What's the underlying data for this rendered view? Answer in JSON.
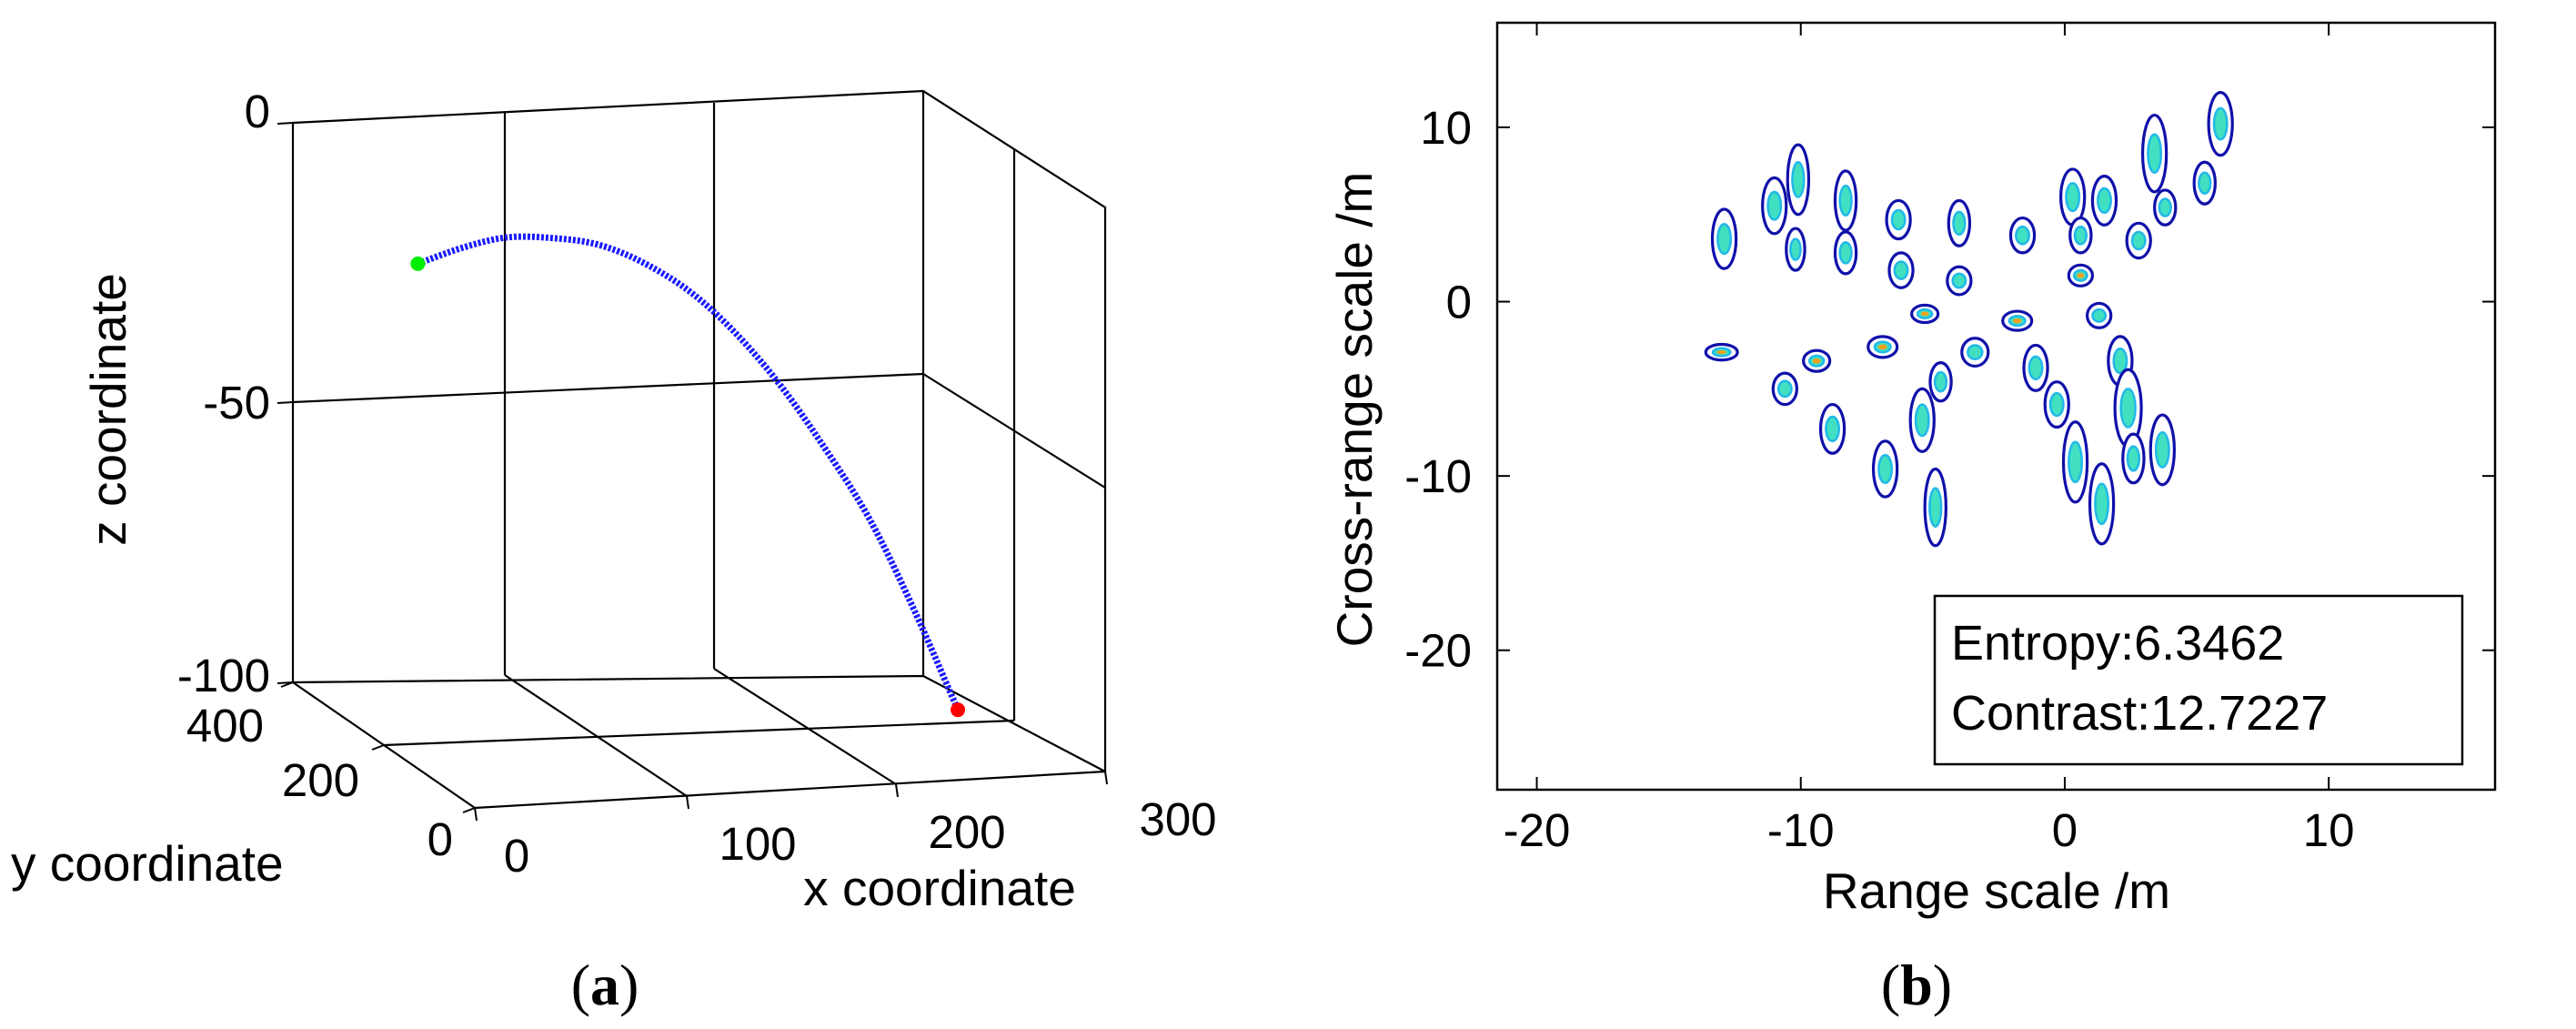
{
  "chart_data": [
    {
      "type": "line",
      "projection": "3d",
      "panel_label": "a",
      "xlabel": "x coordinate",
      "ylabel": "y coordinate",
      "zlabel": "z coordinate",
      "xlim": [
        0,
        300
      ],
      "ylim": [
        0,
        400
      ],
      "zlim": [
        -100,
        0
      ],
      "x_ticks": [
        "0",
        "100",
        "200",
        "300"
      ],
      "y_ticks": [
        "0",
        "200",
        "400"
      ],
      "z_ticks": [
        "0",
        "-50",
        "-100"
      ],
      "grid": true,
      "series": [
        {
          "name": "trajectory",
          "color": "#1a1aff",
          "points": [
            {
              "x": 40,
              "y": 310,
              "z": -21
            },
            {
              "x": 59,
              "y": 300,
              "z": -18
            },
            {
              "x": 78,
              "y": 290,
              "z": -16
            },
            {
              "x": 98,
              "y": 280,
              "z": -16
            },
            {
              "x": 117,
              "y": 270,
              "z": -17
            },
            {
              "x": 136,
              "y": 260,
              "z": -20
            },
            {
              "x": 156,
              "y": 250,
              "z": -25
            },
            {
              "x": 175,
              "y": 240,
              "z": -32
            },
            {
              "x": 194,
              "y": 230,
              "z": -41
            },
            {
              "x": 213,
              "y": 220,
              "z": -52
            },
            {
              "x": 233,
              "y": 210,
              "z": -65
            },
            {
              "x": 252,
              "y": 200,
              "z": -81
            },
            {
              "x": 271,
              "y": 190,
              "z": -99
            }
          ]
        }
      ],
      "markers": [
        {
          "name": "start",
          "color": "#00ee00",
          "x": 40,
          "y": 310,
          "z": -21
        },
        {
          "name": "end",
          "color": "#ff0000",
          "x": 271,
          "y": 190,
          "z": -99
        }
      ]
    },
    {
      "type": "contour",
      "panel_label": "b",
      "xlabel": "Range scale /m",
      "ylabel": "Cross-range scale /m",
      "xlim": [
        -21.5,
        16.3
      ],
      "ylim": [
        -28,
        16
      ],
      "x_ticks": [
        -20,
        -10,
        0,
        10
      ],
      "y_ticks": [
        -20,
        -10,
        0,
        10
      ],
      "legend": {
        "placement": "bottom-right",
        "lines": [
          "Entropy:6.3462",
          "Contrast:12.7227"
        ]
      },
      "colors": {
        "outer": "#1010aa",
        "mid": "#22b8e8",
        "core": "#40e0c0",
        "peak": "#f0a020"
      },
      "scatterers": [
        {
          "x": -12.9,
          "y": 3.6,
          "w": 0.45,
          "h": 1.7,
          "peak": false
        },
        {
          "x": -11.0,
          "y": 5.5,
          "w": 0.45,
          "h": 1.6,
          "peak": false
        },
        {
          "x": -10.1,
          "y": 7.0,
          "w": 0.4,
          "h": 2.0,
          "peak": false
        },
        {
          "x": -8.3,
          "y": 5.8,
          "w": 0.4,
          "h": 1.7,
          "peak": false
        },
        {
          "x": -8.3,
          "y": 2.8,
          "w": 0.4,
          "h": 1.2,
          "peak": false
        },
        {
          "x": -10.2,
          "y": 3.0,
          "w": 0.35,
          "h": 1.2,
          "peak": false
        },
        {
          "x": -6.3,
          "y": 4.7,
          "w": 0.45,
          "h": 1.1,
          "peak": false
        },
        {
          "x": -6.2,
          "y": 1.8,
          "w": 0.45,
          "h": 1.0,
          "peak": false
        },
        {
          "x": -4.0,
          "y": 4.5,
          "w": 0.4,
          "h": 1.3,
          "peak": false
        },
        {
          "x": -4.0,
          "y": 1.2,
          "w": 0.45,
          "h": 0.8,
          "peak": false
        },
        {
          "x": -1.6,
          "y": 3.8,
          "w": 0.45,
          "h": 1.0,
          "peak": false
        },
        {
          "x": 0.3,
          "y": 6.0,
          "w": 0.45,
          "h": 1.6,
          "peak": false
        },
        {
          "x": 1.5,
          "y": 5.8,
          "w": 0.45,
          "h": 1.4,
          "peak": false
        },
        {
          "x": 2.8,
          "y": 3.5,
          "w": 0.45,
          "h": 1.0,
          "peak": false
        },
        {
          "x": 0.6,
          "y": 3.8,
          "w": 0.4,
          "h": 1.0,
          "peak": false
        },
        {
          "x": 3.4,
          "y": 8.5,
          "w": 0.45,
          "h": 2.2,
          "peak": false
        },
        {
          "x": 3.8,
          "y": 5.4,
          "w": 0.4,
          "h": 1.0,
          "peak": false
        },
        {
          "x": 5.3,
          "y": 6.8,
          "w": 0.4,
          "h": 1.2,
          "peak": false
        },
        {
          "x": 5.9,
          "y": 10.2,
          "w": 0.45,
          "h": 1.8,
          "peak": false
        },
        {
          "x": 0.6,
          "y": 1.5,
          "w": 0.45,
          "h": 0.6,
          "peak": true
        },
        {
          "x": 1.3,
          "y": -0.8,
          "w": 0.45,
          "h": 0.7,
          "peak": false
        },
        {
          "x": -13.0,
          "y": -2.9,
          "w": 0.6,
          "h": 0.45,
          "peak": true
        },
        {
          "x": -9.4,
          "y": -3.4,
          "w": 0.5,
          "h": 0.6,
          "peak": true
        },
        {
          "x": -6.9,
          "y": -2.6,
          "w": 0.55,
          "h": 0.6,
          "peak": true
        },
        {
          "x": -5.3,
          "y": -0.7,
          "w": 0.5,
          "h": 0.5,
          "peak": true
        },
        {
          "x": -1.8,
          "y": -1.1,
          "w": 0.55,
          "h": 0.55,
          "peak": true
        },
        {
          "x": -3.4,
          "y": -2.9,
          "w": 0.5,
          "h": 0.8,
          "peak": false
        },
        {
          "x": -10.6,
          "y": -5.0,
          "w": 0.45,
          "h": 0.9,
          "peak": false
        },
        {
          "x": -8.8,
          "y": -7.3,
          "w": 0.45,
          "h": 1.4,
          "peak": false
        },
        {
          "x": -5.4,
          "y": -6.8,
          "w": 0.45,
          "h": 1.8,
          "peak": false
        },
        {
          "x": -4.7,
          "y": -4.6,
          "w": 0.4,
          "h": 1.1,
          "peak": false
        },
        {
          "x": -6.8,
          "y": -9.6,
          "w": 0.45,
          "h": 1.6,
          "peak": false
        },
        {
          "x": -4.9,
          "y": -11.8,
          "w": 0.4,
          "h": 2.2,
          "peak": false
        },
        {
          "x": -1.1,
          "y": -3.8,
          "w": 0.45,
          "h": 1.3,
          "peak": false
        },
        {
          "x": -0.3,
          "y": -5.9,
          "w": 0.45,
          "h": 1.3,
          "peak": false
        },
        {
          "x": 0.4,
          "y": -9.2,
          "w": 0.45,
          "h": 2.3,
          "peak": false
        },
        {
          "x": 2.1,
          "y": -3.4,
          "w": 0.45,
          "h": 1.4,
          "peak": false
        },
        {
          "x": 1.4,
          "y": -11.6,
          "w": 0.45,
          "h": 2.3,
          "peak": false
        },
        {
          "x": 2.4,
          "y": -6.1,
          "w": 0.5,
          "h": 2.2,
          "peak": false
        },
        {
          "x": 2.6,
          "y": -9.0,
          "w": 0.4,
          "h": 1.4,
          "peak": false
        },
        {
          "x": 3.7,
          "y": -8.5,
          "w": 0.45,
          "h": 2.0,
          "peak": false
        }
      ]
    }
  ],
  "captions": {
    "a": "a",
    "b": "b"
  }
}
